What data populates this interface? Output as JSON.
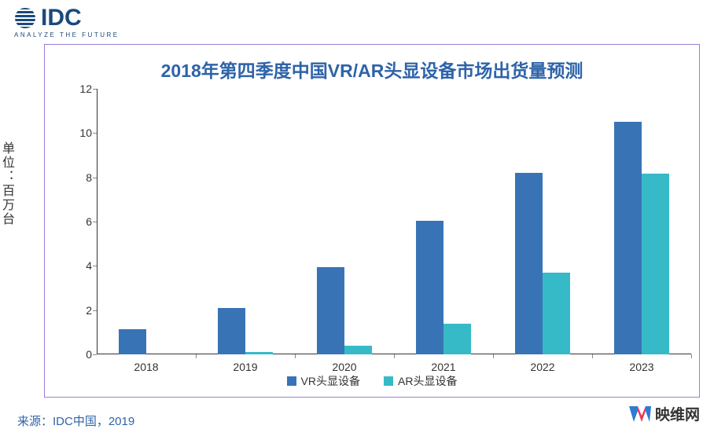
{
  "logo": {
    "brand": "IDC",
    "brand_color": "#1a4a7a",
    "tagline": "ANALYZE THE FUTURE"
  },
  "chart": {
    "type": "bar",
    "title": "2018年第四季度中国VR/AR头显设备市场出货量预测",
    "title_color": "#2e63a8",
    "title_fontsize": 23,
    "frame_border_color": "#9a7ed6",
    "y_axis_title": "单位：百万台",
    "y_axis_title_fontsize": 16,
    "ylim": [
      0,
      12
    ],
    "ytick_step": 2,
    "yticks": [
      0,
      2,
      4,
      6,
      8,
      10,
      12
    ],
    "categories": [
      "2018",
      "2019",
      "2020",
      "2021",
      "2022",
      "2023"
    ],
    "series": [
      {
        "name": "VR头显设备",
        "color": "#3874b5",
        "values": [
          1.15,
          2.1,
          3.95,
          6.05,
          8.2,
          10.5
        ]
      },
      {
        "name": "AR头显设备",
        "color": "#37bac7",
        "values": [
          0.0,
          0.12,
          0.4,
          1.4,
          3.7,
          8.15
        ]
      }
    ],
    "bar_width_ratio": 0.28,
    "label_fontsize": 14,
    "axis_color": "#333333",
    "tick_color": "#888888",
    "background_color": "#ffffff"
  },
  "source": {
    "text": "来源：IDC中国，2019",
    "color": "#2e63a8",
    "fontsize": 15
  },
  "watermark": {
    "text": "映维网",
    "brand_glyph": "W",
    "glyph_color_left": "#2e7bd6",
    "glyph_color_right": "#e63a5a",
    "text_color": "#333333"
  }
}
